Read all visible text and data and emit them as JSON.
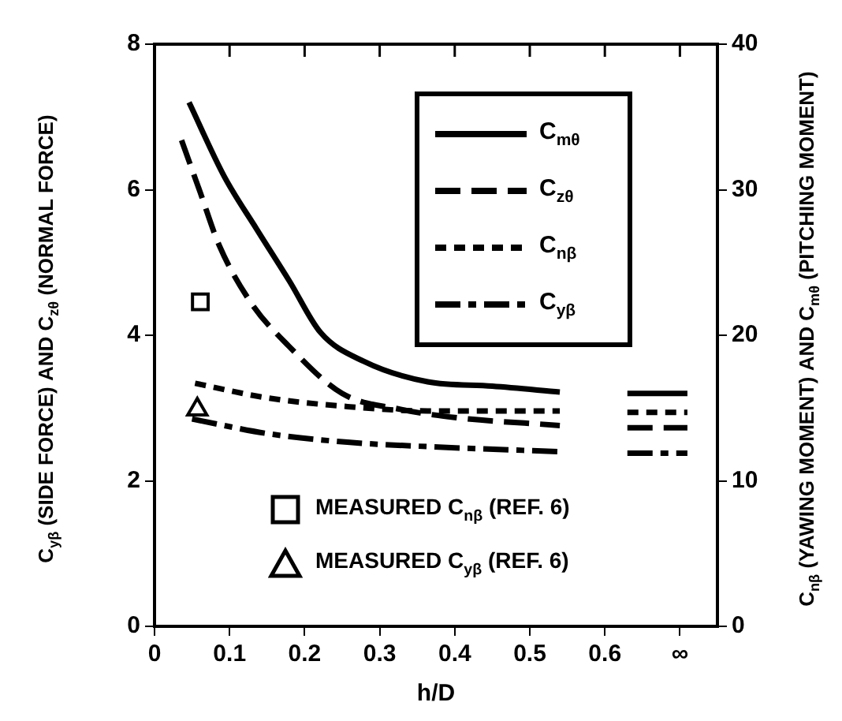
{
  "chart_data": {
    "type": "line",
    "xlabel": "h/D",
    "ylabel": "C$_{yβ}$ (SIDE FORCE) AND C$_{zθ}$ (NORMAL FORCE)",
    "y2label": "C$_{nβ}$ (YAWING MOMENT) AND C$_{mθ}$ (PITCHING MOMENT)",
    "xlim": [
      0,
      0.75
    ],
    "xticks": [
      0,
      0.1,
      0.2,
      0.3,
      0.4,
      0.5,
      0.6,
      {
        "value": 0.7,
        "label": "∞"
      }
    ],
    "ylim": [
      0,
      8
    ],
    "yticks": [
      0,
      2,
      4,
      6,
      8
    ],
    "y2lim": [
      0,
      40
    ],
    "y2ticks": [
      0,
      10,
      20,
      30,
      40
    ],
    "legend": "top right",
    "annotations": [
      "MEASURED C$_{nβ}$ (REF. 6)",
      "MEASURED C$_{yβ}$ (REF. 6)"
    ],
    "series": [
      {
        "name": "C$_{mθ}$",
        "color": "#000000",
        "axis": "y2",
        "line_style": "solid",
        "x": [
          0.046,
          0.093,
          0.136,
          0.18,
          0.221,
          0.279,
          0.364,
          0.45,
          0.54,
          0.59,
          0.63,
          0.71
        ],
        "values": [
          36,
          30.9,
          27.3,
          23.7,
          20.2,
          18.2,
          16.8,
          16.5,
          16.1,
          null,
          16,
          16
        ]
      },
      {
        "name": "C$_{zθ}$",
        "color": "#000000",
        "line_style": "dashed",
        "x": [
          0.036,
          0.061,
          0.086,
          0.129,
          0.179,
          0.25,
          0.329,
          0.4,
          0.54,
          0.59,
          0.63,
          0.71
        ],
        "values": [
          6.68,
          5.96,
          5.24,
          4.44,
          3.85,
          3.2,
          2.98,
          2.87,
          2.76,
          null,
          2.73,
          2.73
        ]
      },
      {
        "name": "C$_{nβ}$",
        "color": "#000000",
        "axis": "y2",
        "line_style": "dotted",
        "x": [
          0.054,
          0.15,
          0.257,
          0.364,
          0.54,
          0.59,
          0.63,
          0.71
        ],
        "values": [
          16.7,
          15.7,
          15.1,
          14.8,
          14.8,
          null,
          14.7,
          14.7
        ]
      },
      {
        "name": "C$_{yβ}$",
        "color": "#000000",
        "line_style": "dashdot",
        "x": [
          0.05,
          0.15,
          0.257,
          0.364,
          0.54,
          0.59,
          0.63,
          0.71
        ],
        "values": [
          2.85,
          2.65,
          2.53,
          2.47,
          2.4,
          null,
          2.38,
          2.38
        ]
      },
      {
        "type": "scatter",
        "marker": "square",
        "color": "#000000",
        "axis": "y2",
        "x": [
          0.061
        ],
        "values": [
          22.3
        ]
      },
      {
        "type": "scatter",
        "marker": "triangle",
        "color": "#000000",
        "x": [
          0.057
        ],
        "values": [
          2.98
        ]
      }
    ]
  }
}
